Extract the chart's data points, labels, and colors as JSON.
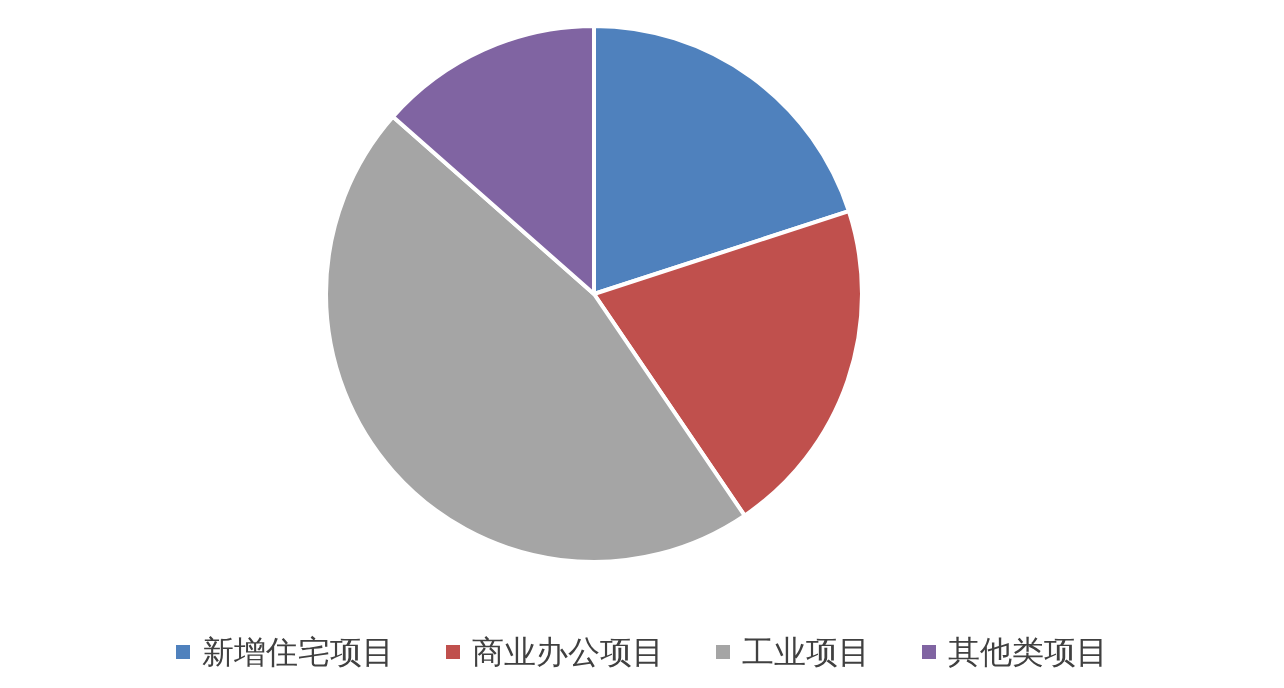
{
  "chart_data": {
    "type": "pie",
    "categories": [
      "新增住宅项目",
      "商业办公项目",
      "工业项目",
      "其他类项目"
    ],
    "values": [
      20,
      20.5,
      46,
      13.5
    ],
    "colors": [
      "#4f81bd",
      "#c0504d",
      "#a5a5a5",
      "#8064a2"
    ],
    "legend": "bottom"
  }
}
